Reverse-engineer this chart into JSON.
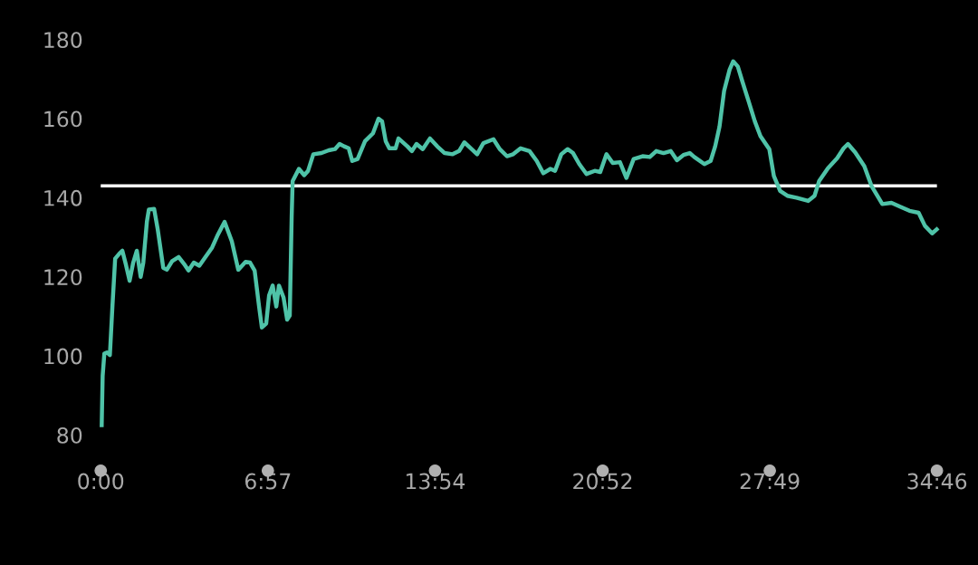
{
  "chart_data": {
    "type": "line",
    "xlim": [
      0,
      34.77
    ],
    "xticks": [
      {
        "value": 0,
        "label": "0:00"
      },
      {
        "value": 6.95,
        "label": "6:57"
      },
      {
        "value": 13.9,
        "label": "13:54"
      },
      {
        "value": 20.87,
        "label": "20:52"
      },
      {
        "value": 27.82,
        "label": "27:49"
      },
      {
        "value": 34.77,
        "label": "34:46"
      }
    ],
    "ylim": [
      80,
      180
    ],
    "yticks": [
      80,
      100,
      120,
      140,
      160,
      180
    ],
    "grid": false,
    "ref_lines": [
      {
        "axis": "y",
        "value": 143,
        "color": "#ffffff"
      }
    ],
    "series": [
      {
        "color": "#4fc3a8",
        "x": [
          0.04,
          0.08,
          0.15,
          0.26,
          0.38,
          0.49,
          0.6,
          0.79,
          0.9,
          1.05,
          1.2,
          1.35,
          1.5,
          1.66,
          1.77,
          1.92,
          2.0,
          2.22,
          2.37,
          2.6,
          2.75,
          2.97,
          3.24,
          3.46,
          3.65,
          3.87,
          4.1,
          4.33,
          4.63,
          4.85,
          5.15,
          5.45,
          5.72,
          6.02,
          6.21,
          6.4,
          6.58,
          6.7,
          6.88,
          7.0,
          7.15,
          7.3,
          7.41,
          7.6,
          7.75,
          7.86,
          7.94,
          7.98,
          8.24,
          8.46,
          8.62,
          8.84,
          9.18,
          9.48,
          9.74,
          9.93,
          10.12,
          10.31,
          10.46,
          10.68,
          10.99,
          11.32,
          11.55,
          11.7,
          11.85,
          12.0,
          12.26,
          12.38,
          12.75,
          12.94,
          13.13,
          13.39,
          13.69,
          13.99,
          14.3,
          14.63,
          14.9,
          15.12,
          15.39,
          15.65,
          15.91,
          16.33,
          16.59,
          16.89,
          17.15,
          17.46,
          17.83,
          18.13,
          18.4,
          18.7,
          18.89,
          19.15,
          19.41,
          19.64,
          19.9,
          20.2,
          20.54,
          20.77,
          21.03,
          21.29,
          21.59,
          21.86,
          22.16,
          22.53,
          22.83,
          23.1,
          23.4,
          23.7,
          23.96,
          24.23,
          24.49,
          24.68,
          24.87,
          25.1,
          25.36,
          25.55,
          25.73,
          25.92,
          26.15,
          26.3,
          26.49,
          26.68,
          26.94,
          27.2,
          27.43,
          27.8,
          27.99,
          28.25,
          28.55,
          28.93,
          29.42,
          29.68,
          29.87,
          30.24,
          30.62,
          30.89,
          31.07,
          31.37,
          31.75,
          32.05,
          32.5,
          32.88,
          33.26,
          33.63,
          34.01,
          34.27,
          34.57,
          34.76
        ],
        "values": [
          82.5,
          95,
          100.6,
          100.9,
          100.2,
          113,
          124.6,
          126,
          126.6,
          123,
          119,
          123.6,
          126.6,
          120,
          123.6,
          134,
          137,
          137.2,
          132,
          122.3,
          121.8,
          124,
          125,
          123.3,
          121.6,
          123.6,
          122.8,
          124.8,
          127.4,
          130.4,
          133.9,
          129,
          121.8,
          123.8,
          123.6,
          121.6,
          112.7,
          107.2,
          108.2,
          115.3,
          117.8,
          112.5,
          117.8,
          114.8,
          109.2,
          110.2,
          135.4,
          144.2,
          147.3,
          145.7,
          146.8,
          151,
          151.3,
          152,
          152.3,
          153.6,
          153,
          152.5,
          149.3,
          149.8,
          154.3,
          156.3,
          160,
          159.3,
          154.3,
          152.5,
          152.5,
          155,
          153,
          151.8,
          153.6,
          152.3,
          155,
          153,
          151.3,
          151,
          151.8,
          154,
          152.5,
          151,
          153.8,
          154.8,
          152.3,
          150.5,
          151,
          152.5,
          151.8,
          149.3,
          146.2,
          147.3,
          146.8,
          151,
          152.3,
          151.3,
          148.5,
          146,
          146.8,
          146.5,
          151,
          148.8,
          149,
          145,
          149.8,
          150.5,
          150.3,
          151.8,
          151.3,
          151.8,
          149.5,
          150.8,
          151.3,
          150.3,
          149.5,
          148.5,
          149.3,
          153,
          158,
          167,
          172.4,
          174.5,
          173.2,
          169.4,
          164.4,
          159.3,
          155.6,
          152.3,
          145.5,
          141.7,
          140.5,
          140,
          139.2,
          140.5,
          144.2,
          147.5,
          150,
          152.5,
          153.6,
          151.5,
          148,
          143,
          138.4,
          138.7,
          137.7,
          136.7,
          136.2,
          132.9,
          131,
          132
        ]
      }
    ]
  }
}
